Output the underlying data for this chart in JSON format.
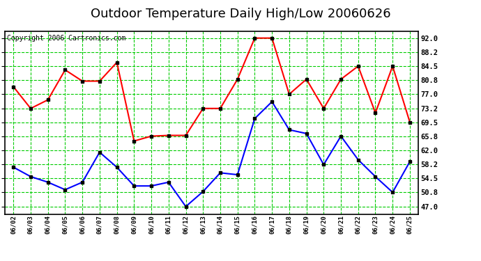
{
  "title": "Outdoor Temperature Daily High/Low 20060626",
  "copyright": "Copyright 2006 Cartronics.com",
  "dates": [
    "06/02",
    "06/03",
    "06/04",
    "06/05",
    "06/06",
    "06/07",
    "06/08",
    "06/09",
    "06/10",
    "06/11",
    "06/12",
    "06/13",
    "06/14",
    "06/15",
    "06/16",
    "06/17",
    "06/18",
    "06/19",
    "06/20",
    "06/21",
    "06/22",
    "06/23",
    "06/24",
    "06/25"
  ],
  "high_temps": [
    79.0,
    73.2,
    75.5,
    83.5,
    80.5,
    80.5,
    85.5,
    64.5,
    65.8,
    66.0,
    66.0,
    73.2,
    73.2,
    81.0,
    92.0,
    92.0,
    77.0,
    81.0,
    73.2,
    81.0,
    84.5,
    72.0,
    84.5,
    69.5
  ],
  "low_temps": [
    57.5,
    55.0,
    53.5,
    51.5,
    53.5,
    61.5,
    57.5,
    52.5,
    52.5,
    53.5,
    47.0,
    51.0,
    56.0,
    55.5,
    70.5,
    75.0,
    67.5,
    66.5,
    58.2,
    65.8,
    59.5,
    55.0,
    50.8,
    59.0
  ],
  "high_color": "#FF0000",
  "low_color": "#0000FF",
  "grid_color": "#00CC00",
  "bg_color": "#FFFFFF",
  "plot_bg_color": "#FFFFFF",
  "title_fontsize": 13,
  "copyright_fontsize": 7,
  "ylabel_right": [
    "47.0",
    "50.8",
    "54.5",
    "58.2",
    "62.0",
    "65.8",
    "69.5",
    "73.2",
    "77.0",
    "80.8",
    "84.5",
    "88.2",
    "92.0"
  ],
  "yticks": [
    47.0,
    50.8,
    54.5,
    58.2,
    62.0,
    65.8,
    69.5,
    73.2,
    77.0,
    80.8,
    84.5,
    88.2,
    92.0
  ],
  "ylim": [
    45.0,
    93.8
  ],
  "marker": "s",
  "markersize": 3,
  "linewidth": 1.5
}
